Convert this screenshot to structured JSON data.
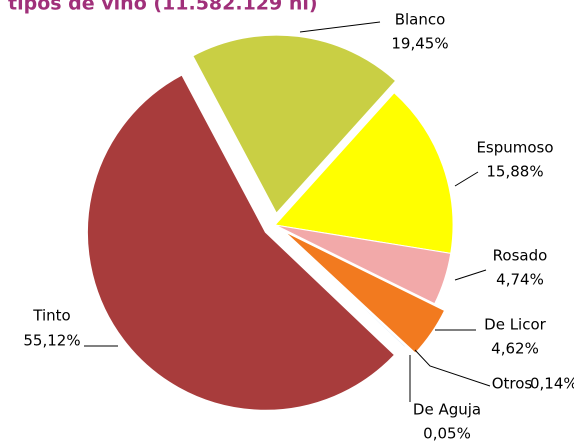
{
  "chart_data": {
    "type": "pie",
    "title": "tipos de vino (11.582.129 hl)",
    "categories": [
      "Blanco",
      "Espumoso",
      "Rosado",
      "De Licor",
      "Otros",
      "De Aguja",
      "Tinto"
    ],
    "values": [
      19.45,
      15.88,
      4.74,
      4.62,
      0.14,
      0.05,
      55.12
    ],
    "value_labels": [
      "19,45%",
      "15,88%",
      "4,74%",
      "4,62%",
      "0,14%",
      "0,05%",
      "55,12%"
    ],
    "colors": [
      "#c9cf44",
      "#ffff00",
      "#f2a9a9",
      "#f27a1f",
      "#dce6f0",
      "#8faadc",
      "#a83c3c"
    ],
    "explode": [
      true,
      false,
      false,
      true,
      false,
      false,
      true
    ]
  }
}
